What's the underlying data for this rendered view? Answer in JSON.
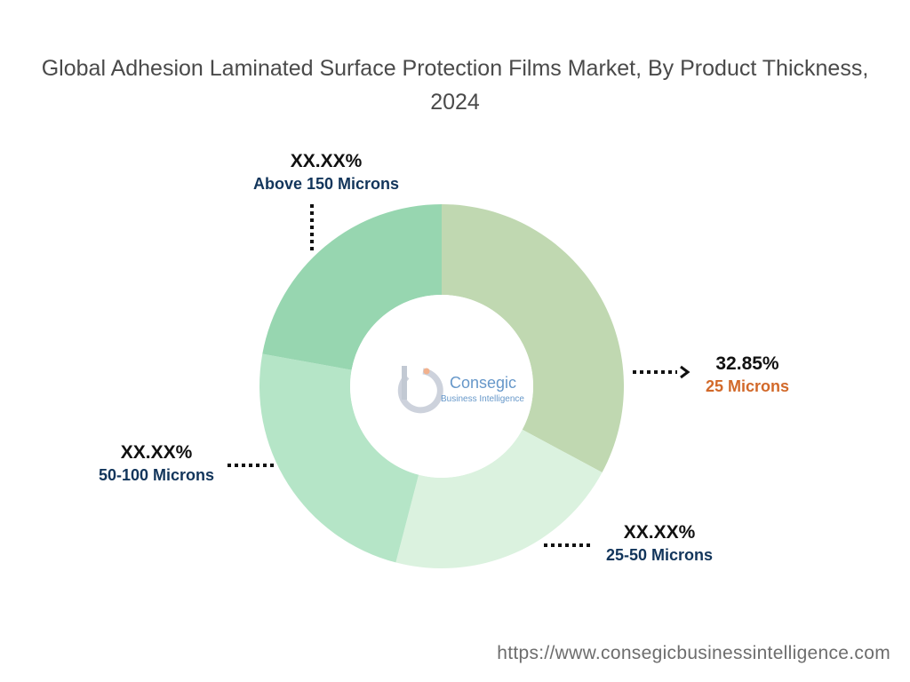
{
  "chart_data": {
    "type": "pie",
    "variant": "donut",
    "title": "Global Adhesion Laminated Surface Protection Films Market, By Product Thickness, 2024",
    "slices": [
      {
        "label": "25 Microns",
        "value_label": "32.85%",
        "share": 32.85,
        "color": "#c0d8b1",
        "label_color": "#d2692a"
      },
      {
        "label": "25-50 Microns",
        "value_label": "XX.XX%",
        "share": 21.2,
        "color": "#dbf2df",
        "label_color": "#12355b"
      },
      {
        "label": "50-100 Microns",
        "value_label": "XX.XX%",
        "share": 23.8,
        "color": "#b5e5c7",
        "label_color": "#12355b"
      },
      {
        "label": "Above 150 Microns",
        "value_label": "XX.XX%",
        "share": 22.15,
        "color": "#97d6b0",
        "label_color": "#12355b"
      }
    ]
  },
  "logo": {
    "brand": "Consegic",
    "sub": "Business Intelligence"
  },
  "source_url": "https://www.consegicbusinessintelligence.com"
}
